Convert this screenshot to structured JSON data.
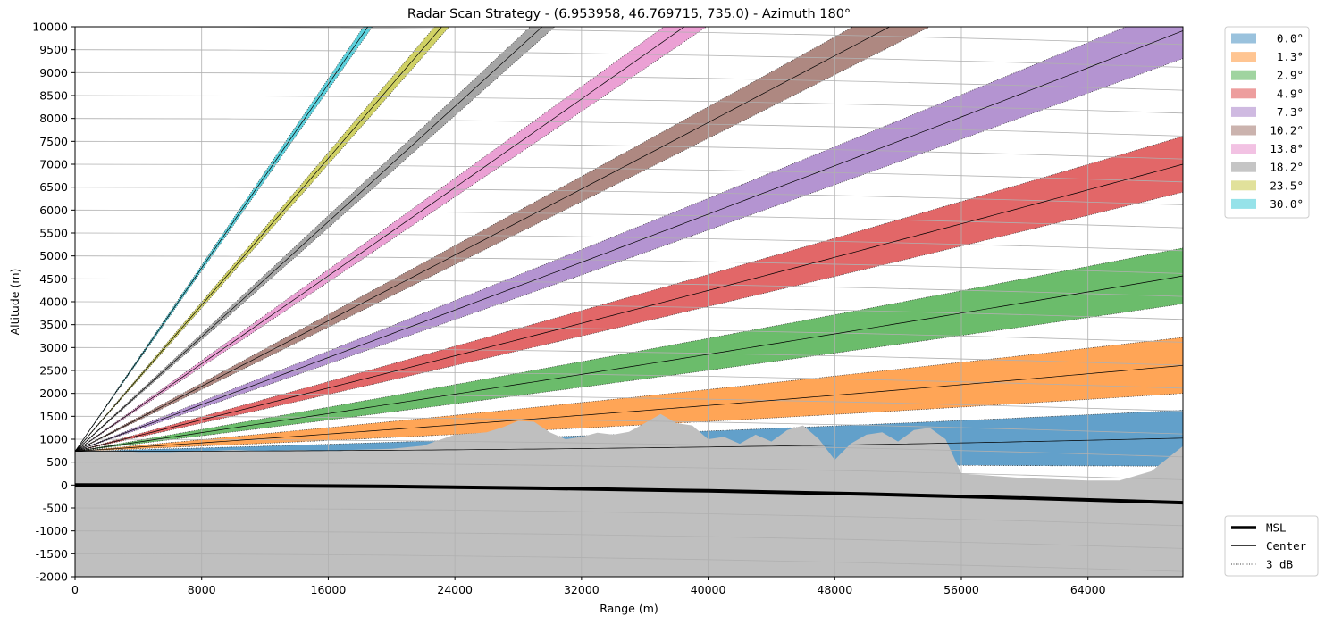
{
  "chart_data": {
    "type": "area",
    "title": "Radar Scan Strategy - (6.953958, 46.769715, 735.0) - Azimuth 180°",
    "xlabel": "Range (m)",
    "ylabel": "Altitude (m)",
    "xlim": [
      0,
      70000
    ],
    "ylim": [
      -2000,
      10000
    ],
    "x_ticks": [
      "0",
      "8000",
      "16000",
      "24000",
      "32000",
      "40000",
      "48000",
      "56000",
      "64000"
    ],
    "y_ticks": [
      "-2000",
      "-1500",
      "-1000",
      "-500",
      "0",
      "500",
      "1000",
      "1500",
      "2000",
      "2500",
      "3000",
      "3500",
      "4000",
      "4500",
      "5000",
      "5500",
      "6000",
      "6500",
      "7000",
      "7500",
      "8000",
      "8500",
      "9000",
      "9500",
      "10000"
    ],
    "grid": true,
    "radar_altitude_m": 735.0,
    "beamwidth_deg": 1.0,
    "series": [
      {
        "name": "0.0°",
        "elevation_deg": 0.0,
        "color": "#1f77b4"
      },
      {
        "name": "1.3°",
        "elevation_deg": 1.3,
        "color": "#ff7f0e"
      },
      {
        "name": "2.9°",
        "elevation_deg": 2.9,
        "color": "#2ca02c"
      },
      {
        "name": "4.9°",
        "elevation_deg": 4.9,
        "color": "#d62728"
      },
      {
        "name": "7.3°",
        "elevation_deg": 7.3,
        "color": "#9467bd"
      },
      {
        "name": "10.2°",
        "elevation_deg": 10.2,
        "color": "#8c564b"
      },
      {
        "name": "13.8°",
        "elevation_deg": 13.8,
        "color": "#e377c2"
      },
      {
        "name": "18.2°",
        "elevation_deg": 18.2,
        "color": "#7f7f7f"
      },
      {
        "name": "23.5°",
        "elevation_deg": 23.5,
        "color": "#bcbd22"
      },
      {
        "name": "30.0°",
        "elevation_deg": 30.0,
        "color": "#17becf"
      }
    ],
    "terrain": {
      "color": "#bfbfbf",
      "x": [
        0,
        2000,
        4000,
        6000,
        8000,
        10000,
        12000,
        14000,
        16000,
        18000,
        20000,
        22000,
        23000,
        24000,
        25000,
        26000,
        27000,
        28000,
        29000,
        30000,
        31000,
        32000,
        33000,
        34000,
        35000,
        36000,
        37000,
        38000,
        39000,
        40000,
        41000,
        42000,
        43000,
        44000,
        45000,
        46000,
        47000,
        48000,
        49000,
        50000,
        51000,
        52000,
        53000,
        54000,
        55000,
        56000,
        60000,
        64000,
        66000,
        68000,
        70000
      ],
      "y": [
        740,
        760,
        720,
        720,
        740,
        760,
        740,
        760,
        750,
        770,
        790,
        860,
        980,
        1100,
        1120,
        1150,
        1260,
        1400,
        1380,
        1150,
        1000,
        1050,
        1140,
        1100,
        1160,
        1350,
        1550,
        1350,
        1300,
        1000,
        1050,
        900,
        1100,
        950,
        1200,
        1300,
        1000,
        550,
        900,
        1100,
        1150,
        950,
        1200,
        1250,
        1000,
        250,
        150,
        100,
        100,
        300,
        850
      ]
    },
    "msl": {
      "x": [
        0,
        10000,
        20000,
        30000,
        40000,
        50000,
        60000,
        70000
      ],
      "y": [
        0,
        -8,
        -31,
        -71,
        -126,
        -196,
        -283,
        -385
      ]
    },
    "style_legend": [
      "MSL",
      "Center",
      "3 dB"
    ]
  }
}
